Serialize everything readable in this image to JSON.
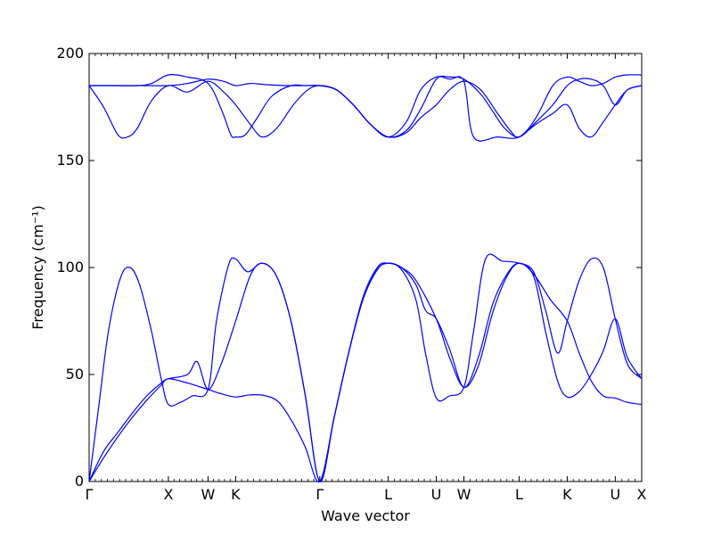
{
  "chart_data": {
    "type": "line",
    "title": "",
    "xlabel": "Wave vector",
    "ylabel": "Frequency (cm⁻¹)",
    "ylim": [
      0,
      200
    ],
    "yticks": [
      0,
      50,
      100,
      150,
      200
    ],
    "grid": false,
    "legend": "none",
    "line_color": "#0000ff",
    "xlim": [
      0,
      23
    ],
    "kpoints": [
      {
        "label": "Γ",
        "x": 0
      },
      {
        "label": "X",
        "x": 3.3
      },
      {
        "label": "W",
        "x": 4.95
      },
      {
        "label": "K",
        "x": 6.1
      },
      {
        "label": "Γ",
        "x": 9.6
      },
      {
        "label": "L",
        "x": 12.45
      },
      {
        "label": "U",
        "x": 14.45
      },
      {
        "label": "W",
        "x": 15.6
      },
      {
        "label": "L",
        "x": 17.9
      },
      {
        "label": "K",
        "x": 19.9
      },
      {
        "label": "U",
        "x": 21.9
      },
      {
        "label": "X",
        "x": 23
      }
    ],
    "series": [
      {
        "points": [
          [
            0,
            0
          ],
          [
            0.6,
            11
          ],
          [
            1.2,
            21
          ],
          [
            1.8,
            30
          ],
          [
            2.4,
            38
          ],
          [
            3.0,
            45
          ],
          [
            3.3,
            48
          ],
          [
            4.1,
            46
          ],
          [
            4.95,
            43
          ],
          [
            5.5,
            41
          ],
          [
            6.1,
            39.5
          ],
          [
            6.7,
            40.5
          ],
          [
            7.3,
            40.2
          ],
          [
            7.9,
            37
          ],
          [
            8.5,
            27
          ],
          [
            9.0,
            16
          ],
          [
            9.6,
            0
          ],
          [
            10.2,
            30
          ],
          [
            10.8,
            60
          ],
          [
            11.4,
            85
          ],
          [
            12.0,
            99
          ],
          [
            12.45,
            102
          ],
          [
            13.0,
            100
          ],
          [
            13.6,
            94
          ],
          [
            14.45,
            76
          ],
          [
            15.0,
            58
          ],
          [
            15.6,
            44
          ],
          [
            16.2,
            54
          ],
          [
            16.8,
            79
          ],
          [
            17.4,
            96
          ],
          [
            17.9,
            102
          ],
          [
            18.5,
            97
          ],
          [
            19.2,
            85
          ],
          [
            19.9,
            75
          ],
          [
            20.4,
            60
          ],
          [
            20.9,
            47
          ],
          [
            21.4,
            40
          ],
          [
            21.9,
            39
          ],
          [
            22.4,
            37
          ],
          [
            23,
            36
          ]
        ]
      },
      {
        "points": [
          [
            0,
            0
          ],
          [
            0.6,
            14
          ],
          [
            1.2,
            23
          ],
          [
            1.8,
            32
          ],
          [
            2.4,
            40
          ],
          [
            3.0,
            46
          ],
          [
            3.3,
            48
          ],
          [
            4.1,
            50
          ],
          [
            4.5,
            56
          ],
          [
            4.95,
            43
          ],
          [
            5.5,
            55
          ],
          [
            6.1,
            75
          ],
          [
            6.7,
            96
          ],
          [
            7.2,
            102
          ],
          [
            7.8,
            96
          ],
          [
            8.4,
            75
          ],
          [
            9.0,
            40
          ],
          [
            9.6,
            0
          ],
          [
            10.2,
            30
          ],
          [
            10.8,
            60
          ],
          [
            11.4,
            86
          ],
          [
            12.0,
            100
          ],
          [
            12.45,
            102
          ],
          [
            13.0,
            100
          ],
          [
            13.6,
            92
          ],
          [
            14.0,
            80
          ],
          [
            14.45,
            76
          ],
          [
            15.0,
            62
          ],
          [
            15.6,
            44
          ],
          [
            16.2,
            58
          ],
          [
            16.8,
            83
          ],
          [
            17.4,
            97
          ],
          [
            17.9,
            102
          ],
          [
            18.5,
            96
          ],
          [
            19.0,
            70
          ],
          [
            19.5,
            47
          ],
          [
            19.9,
            39.5
          ],
          [
            20.4,
            42
          ],
          [
            20.9,
            50
          ],
          [
            21.4,
            61
          ],
          [
            21.9,
            76
          ],
          [
            22.4,
            58
          ],
          [
            23,
            48
          ]
        ]
      },
      {
        "points": [
          [
            0,
            0
          ],
          [
            0.4,
            35
          ],
          [
            0.8,
            70
          ],
          [
            1.3,
            95
          ],
          [
            1.7,
            100
          ],
          [
            2.1,
            92
          ],
          [
            2.6,
            70
          ],
          [
            3.0,
            48
          ],
          [
            3.3,
            36
          ],
          [
            3.8,
            37
          ],
          [
            4.3,
            40
          ],
          [
            4.95,
            43
          ],
          [
            5.3,
            75
          ],
          [
            5.8,
            101
          ],
          [
            6.1,
            104
          ],
          [
            6.6,
            98
          ],
          [
            7.2,
            102
          ],
          [
            7.8,
            96
          ],
          [
            8.4,
            75
          ],
          [
            9.0,
            40
          ],
          [
            9.6,
            0
          ],
          [
            10.2,
            30
          ],
          [
            10.8,
            60
          ],
          [
            11.4,
            86
          ],
          [
            12.0,
            100
          ],
          [
            12.45,
            102
          ],
          [
            13.0,
            99
          ],
          [
            13.6,
            85
          ],
          [
            14.0,
            60
          ],
          [
            14.45,
            39
          ],
          [
            15.0,
            40
          ],
          [
            15.6,
            44
          ],
          [
            16.0,
            70
          ],
          [
            16.5,
            104
          ],
          [
            17.2,
            103
          ],
          [
            17.9,
            102
          ],
          [
            18.5,
            98
          ],
          [
            19.0,
            80
          ],
          [
            19.5,
            60
          ],
          [
            19.9,
            75
          ],
          [
            20.4,
            94
          ],
          [
            20.9,
            104
          ],
          [
            21.4,
            100
          ],
          [
            21.9,
            76
          ],
          [
            22.4,
            55
          ],
          [
            23,
            48
          ]
        ]
      },
      {
        "points": [
          [
            0,
            185
          ],
          [
            0.6,
            175
          ],
          [
            1.2,
            162
          ],
          [
            1.6,
            161
          ],
          [
            2.0,
            165
          ],
          [
            2.6,
            178
          ],
          [
            3.3,
            185
          ],
          [
            4.1,
            182
          ],
          [
            4.95,
            187
          ],
          [
            5.6,
            182
          ],
          [
            6.1,
            176
          ],
          [
            6.7,
            167
          ],
          [
            7.2,
            161
          ],
          [
            7.8,
            165
          ],
          [
            8.5,
            176
          ],
          [
            9.1,
            183
          ],
          [
            9.6,
            185
          ],
          [
            10.3,
            183
          ],
          [
            11.0,
            176
          ],
          [
            11.7,
            167
          ],
          [
            12.45,
            161
          ],
          [
            13.2,
            163
          ],
          [
            13.8,
            170
          ],
          [
            14.45,
            176
          ],
          [
            15.0,
            183
          ],
          [
            15.6,
            187
          ],
          [
            16.3,
            183
          ],
          [
            17.0,
            172
          ],
          [
            17.6,
            163
          ],
          [
            17.9,
            161
          ],
          [
            18.6,
            167
          ],
          [
            19.3,
            172
          ],
          [
            19.9,
            176
          ],
          [
            20.4,
            165
          ],
          [
            20.9,
            161
          ],
          [
            21.4,
            168
          ],
          [
            21.9,
            176
          ],
          [
            22.4,
            183
          ],
          [
            23,
            185
          ]
        ]
      },
      {
        "points": [
          [
            0,
            185
          ],
          [
            1.0,
            185
          ],
          [
            2.0,
            185
          ],
          [
            3.3,
            185
          ],
          [
            4.1,
            186
          ],
          [
            4.95,
            188
          ],
          [
            5.6,
            187
          ],
          [
            6.1,
            185
          ],
          [
            6.7,
            186
          ],
          [
            7.3,
            185.5
          ],
          [
            8.2,
            185
          ],
          [
            9.0,
            185
          ],
          [
            9.6,
            185
          ],
          [
            10.3,
            183
          ],
          [
            11.0,
            176
          ],
          [
            11.7,
            167
          ],
          [
            12.45,
            161
          ],
          [
            13.2,
            164
          ],
          [
            13.8,
            174
          ],
          [
            14.45,
            188
          ],
          [
            15.0,
            189
          ],
          [
            15.6,
            188
          ],
          [
            16.3,
            181
          ],
          [
            16.8,
            173
          ],
          [
            17.3,
            165
          ],
          [
            17.9,
            161
          ],
          [
            18.6,
            168
          ],
          [
            19.3,
            176
          ],
          [
            19.9,
            185
          ],
          [
            20.4,
            188
          ],
          [
            20.9,
            188
          ],
          [
            21.4,
            185
          ],
          [
            21.9,
            176
          ],
          [
            22.4,
            183
          ],
          [
            23,
            185
          ]
        ]
      },
      {
        "points": [
          [
            0,
            185
          ],
          [
            1.0,
            185
          ],
          [
            2.0,
            185
          ],
          [
            2.6,
            186
          ],
          [
            3.3,
            190
          ],
          [
            4.1,
            189
          ],
          [
            4.95,
            186
          ],
          [
            5.5,
            174
          ],
          [
            5.9,
            162
          ],
          [
            6.1,
            161
          ],
          [
            6.5,
            162
          ],
          [
            7.0,
            170
          ],
          [
            7.6,
            180
          ],
          [
            8.4,
            185
          ],
          [
            9.0,
            185
          ],
          [
            9.6,
            185
          ],
          [
            10.3,
            183
          ],
          [
            11.0,
            176
          ],
          [
            11.7,
            167
          ],
          [
            12.45,
            161
          ],
          [
            13.2,
            168
          ],
          [
            13.8,
            183
          ],
          [
            14.45,
            189
          ],
          [
            15.0,
            188
          ],
          [
            15.6,
            187
          ],
          [
            16.0,
            161
          ],
          [
            17.0,
            161
          ],
          [
            17.9,
            161
          ],
          [
            18.6,
            170
          ],
          [
            19.3,
            185
          ],
          [
            19.9,
            189
          ],
          [
            20.4,
            187
          ],
          [
            20.9,
            185
          ],
          [
            21.4,
            186
          ],
          [
            21.9,
            189
          ],
          [
            22.4,
            190
          ],
          [
            23,
            190
          ]
        ]
      }
    ]
  }
}
